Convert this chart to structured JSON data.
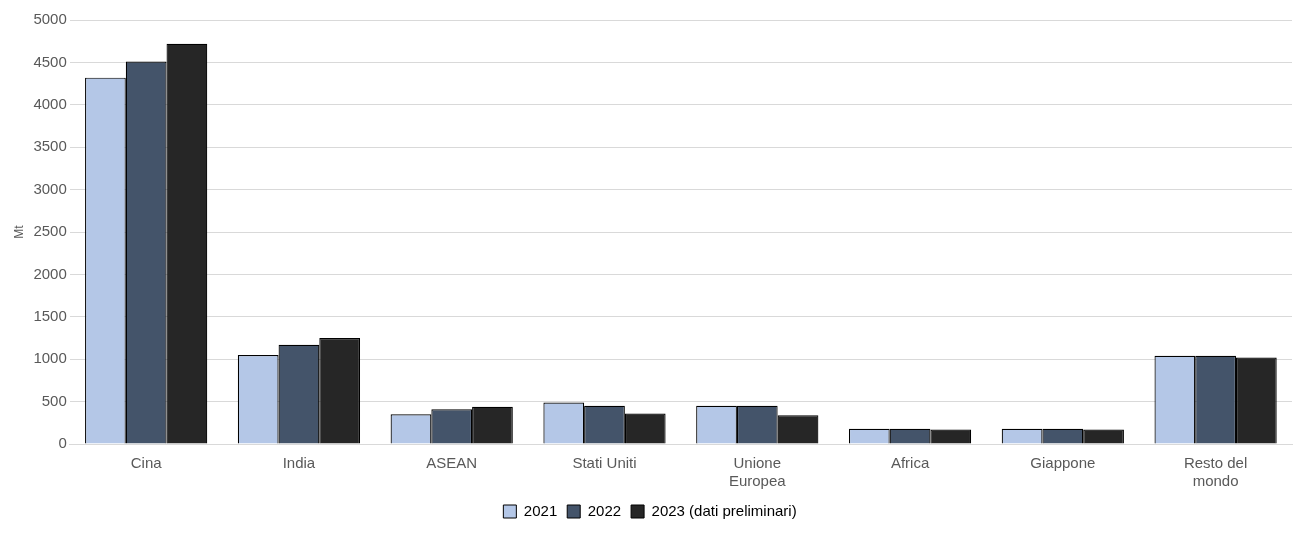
{
  "chart_data": {
    "type": "bar",
    "ylabel": "Mt",
    "categories": [
      "Cina",
      "India",
      "ASEAN",
      "Stati Uniti",
      "Unione Europea",
      "Africa",
      "Giappone",
      "Resto del mondo"
    ],
    "series": [
      {
        "name": "2021",
        "color": "#b4c7e7",
        "values": [
          4320,
          1050,
          350,
          490,
          450,
          180,
          180,
          1040
        ]
      },
      {
        "name": "2022",
        "color": "#44546a",
        "values": [
          4510,
          1170,
          410,
          450,
          450,
          180,
          180,
          1040
        ]
      },
      {
        "name": "2023 (dati preliminari)",
        "color": "#262626",
        "values": [
          4720,
          1250,
          440,
          360,
          340,
          170,
          170,
          1020
        ]
      }
    ],
    "ylim": [
      0,
      5000
    ],
    "yticks": [
      0,
      500,
      1000,
      1500,
      2000,
      2500,
      3000,
      3500,
      4000,
      4500,
      5000
    ],
    "grid": "y",
    "legend": "bottom"
  }
}
